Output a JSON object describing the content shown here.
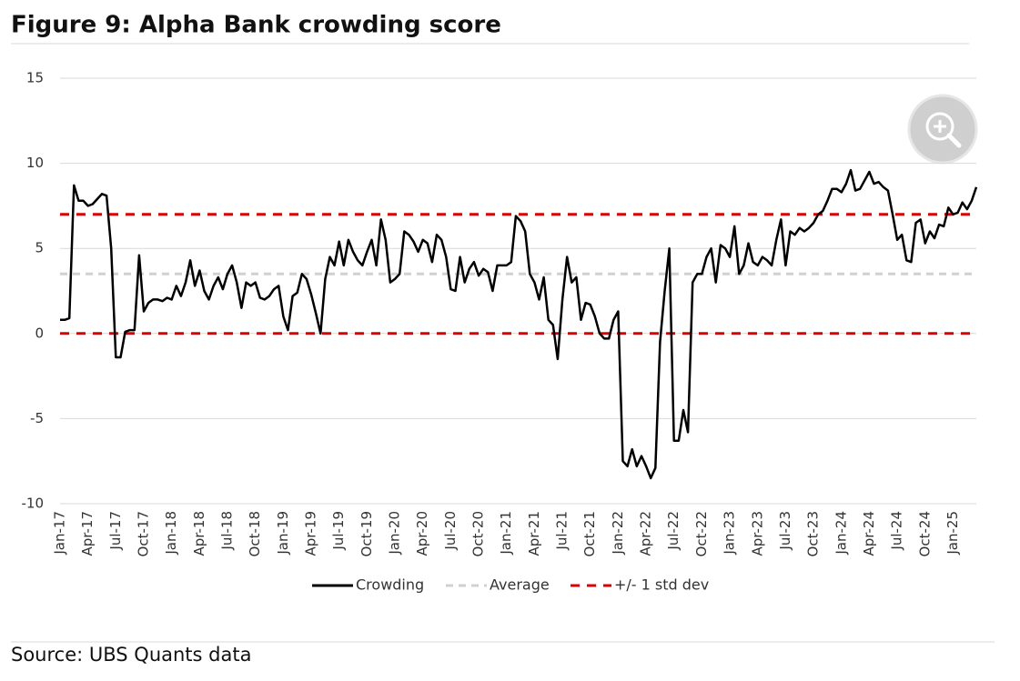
{
  "chart_data": {
    "type": "line",
    "title": "Figure 9: Alpha Bank crowding score",
    "source": "Source: UBS Quants data",
    "categories": [
      "Jan-17",
      null,
      null,
      null,
      null,
      null,
      "Apr-17",
      null,
      null,
      null,
      null,
      null,
      "Jul-17",
      null,
      null,
      null,
      null,
      null,
      "Oct-17",
      null,
      null,
      null,
      null,
      null,
      "Jan-18",
      null,
      null,
      null,
      null,
      null,
      "Apr-18",
      null,
      null,
      null,
      null,
      null,
      "Jul-18",
      null,
      null,
      null,
      null,
      null,
      "Oct-18",
      null,
      null,
      null,
      null,
      null,
      "Jan-19",
      null,
      null,
      null,
      null,
      null,
      "Apr-19",
      null,
      null,
      null,
      null,
      null,
      "Jul-19",
      null,
      null,
      null,
      null,
      null,
      "Oct-19",
      null,
      null,
      null,
      null,
      null,
      "Jan-20",
      null,
      null,
      null,
      null,
      null,
      "Apr-20",
      null,
      null,
      null,
      null,
      null,
      "Jul-20",
      null,
      null,
      null,
      null,
      null,
      "Oct-20",
      null,
      null,
      null,
      null,
      null,
      "Jan-21",
      null,
      null,
      null,
      null,
      null,
      "Apr-21",
      null,
      null,
      null,
      null,
      null,
      "Jul-21",
      null,
      null,
      null,
      null,
      null,
      "Oct-21",
      null,
      null,
      null,
      null,
      null,
      "Jan-22",
      null,
      null,
      null,
      null,
      null,
      "Apr-22",
      null,
      null,
      null,
      null,
      null,
      "Jul-22",
      null,
      null,
      null,
      null,
      null,
      "Oct-22",
      null,
      null,
      null,
      null,
      null,
      "Jan-23",
      null,
      null,
      null,
      null,
      null,
      "Apr-23",
      null,
      null,
      null,
      null,
      null,
      "Jul-23",
      null,
      null,
      null,
      null,
      null,
      "Oct-23",
      null,
      null,
      null,
      null,
      null,
      "Jan-24",
      null,
      null,
      null,
      null,
      null,
      "Apr-24",
      null,
      null,
      null,
      null,
      null,
      "Jul-24",
      null,
      null,
      null,
      null,
      null,
      "Oct-24",
      null,
      null,
      null,
      null,
      null,
      "Jan-25",
      null,
      null,
      null,
      null,
      null
    ],
    "series": [
      {
        "name": "Crowding",
        "color": "#000000",
        "values": [
          0.8,
          0.8,
          0.9,
          8.7,
          7.8,
          7.8,
          7.5,
          7.6,
          7.9,
          8.2,
          8.1,
          5.0,
          -1.4,
          -1.4,
          0.1,
          0.2,
          0.2,
          4.6,
          1.3,
          1.8,
          2.0,
          2.0,
          1.9,
          2.1,
          2.0,
          2.8,
          2.2,
          3.0,
          4.3,
          2.8,
          3.7,
          2.5,
          2.0,
          2.8,
          3.3,
          2.6,
          3.5,
          4.0,
          3.0,
          1.5,
          3.0,
          2.8,
          3.0,
          2.1,
          2.0,
          2.2,
          2.6,
          2.8,
          1.0,
          0.2,
          2.2,
          2.4,
          3.5,
          3.2,
          2.3,
          1.2,
          0.0,
          3.2,
          4.5,
          4.0,
          5.4,
          4.0,
          5.5,
          4.8,
          4.3,
          4.0,
          4.8,
          5.5,
          4.0,
          6.7,
          5.5,
          3.0,
          3.2,
          3.5,
          6.0,
          5.8,
          5.4,
          4.8,
          5.5,
          5.3,
          4.2,
          5.8,
          5.5,
          4.5,
          2.6,
          2.5,
          4.5,
          3.0,
          3.8,
          4.2,
          3.4,
          3.8,
          3.6,
          2.5,
          4.0,
          4.0,
          4.0,
          4.2,
          6.9,
          6.6,
          6.0,
          3.5,
          3.0,
          2.0,
          3.3,
          0.8,
          0.5,
          -1.5,
          2.0,
          4.5,
          3.0,
          3.3,
          0.8,
          1.8,
          1.7,
          1.0,
          0.0,
          -0.3,
          -0.3,
          0.8,
          1.3,
          -7.5,
          -7.8,
          -6.8,
          -7.8,
          -7.2,
          -7.8,
          -8.5,
          -7.9,
          -0.5,
          2.5,
          5.0,
          -6.3,
          -6.3,
          -4.5,
          -5.8,
          3.0,
          3.5,
          3.5,
          4.5,
          5.0,
          3.0,
          5.2,
          5.0,
          4.5,
          6.3,
          3.5,
          4.0,
          5.3,
          4.2,
          4.0,
          4.5,
          4.3,
          4.0,
          5.5,
          6.7,
          4.0,
          6.0,
          5.8,
          6.2,
          6.0,
          6.2,
          6.5,
          7.0,
          7.2,
          7.8,
          8.5,
          8.5,
          8.3,
          8.8,
          9.6,
          8.4,
          8.5,
          9.0,
          9.5,
          8.8,
          8.9,
          8.6,
          8.4,
          7.0,
          5.5,
          5.8,
          4.3,
          4.2,
          6.5,
          6.7,
          5.3,
          6.0,
          5.6,
          6.4,
          6.3,
          7.4,
          7.0,
          7.1,
          7.7,
          7.3,
          7.8,
          8.6
        ]
      }
    ],
    "reference_lines": [
      {
        "name": "Average",
        "color": "#d0d0d0",
        "values": [
          3.5
        ]
      },
      {
        "name": "+/- 1 std dev",
        "color": "#e00000",
        "values": [
          0,
          7
        ]
      }
    ],
    "ylim": [
      -10,
      15
    ],
    "yticks": [
      -10,
      -5,
      0,
      5,
      10,
      15
    ],
    "grid": true
  }
}
